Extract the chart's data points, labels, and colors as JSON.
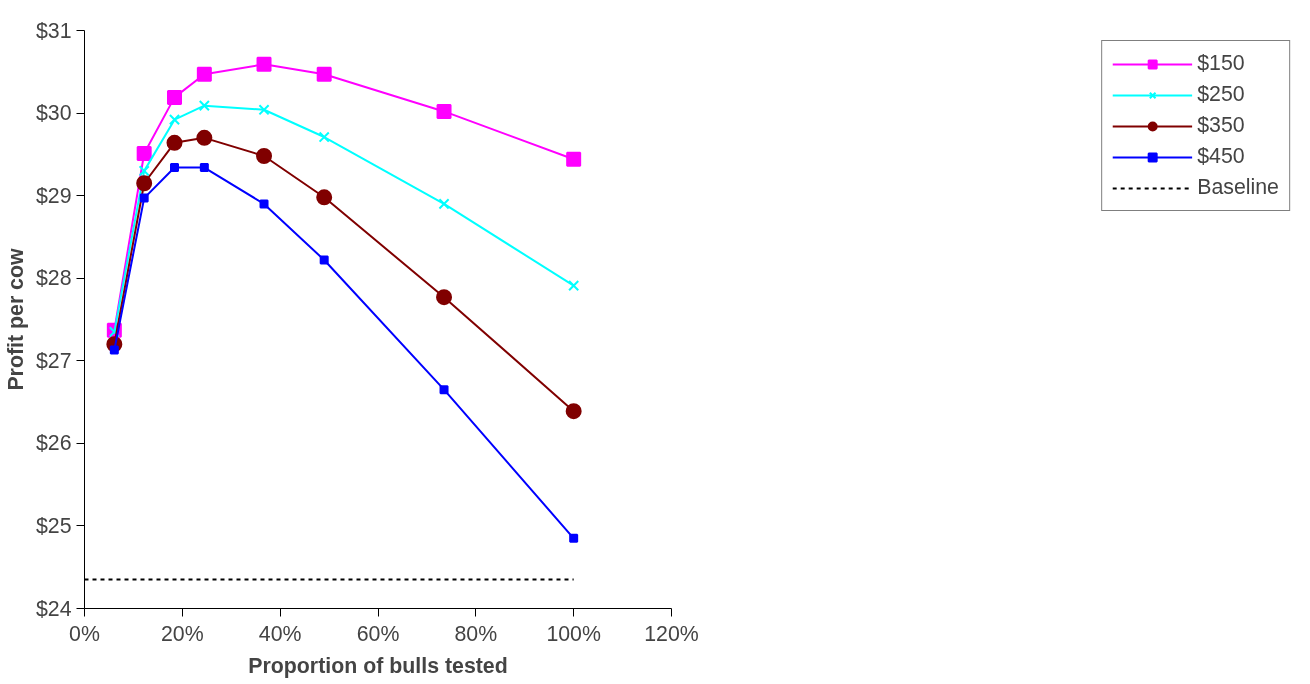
{
  "chart_data": {
    "type": "line",
    "xlabel": "Proportion of bulls tested",
    "ylabel": "Profit per cow",
    "x": [
      6.1,
      12.2,
      18.4,
      24.5,
      36.7,
      49,
      73.5,
      100
    ],
    "series": [
      {
        "name": "$150",
        "color": "#ff00ff",
        "marker": "square",
        "values": [
          27.37,
          29.51,
          30.19,
          30.47,
          30.59,
          30.47,
          30.02,
          29.44
        ]
      },
      {
        "name": "$250",
        "color": "#00ffff",
        "marker": "cross",
        "values": [
          27.35,
          29.3,
          29.92,
          30.09,
          30.04,
          29.71,
          28.9,
          27.91
        ]
      },
      {
        "name": "$350",
        "color": "#800000",
        "marker": "circle",
        "values": [
          27.2,
          29.15,
          29.64,
          29.7,
          29.48,
          28.98,
          27.77,
          26.39
        ]
      },
      {
        "name": "$450",
        "color": "#0000ff",
        "marker": "square",
        "values": [
          27.13,
          28.97,
          29.34,
          29.34,
          28.9,
          28.22,
          26.65,
          24.85
        ]
      },
      {
        "name": "Baseline",
        "color": "#000000",
        "marker": "none",
        "line_style": "dotted",
        "x": [
          0,
          100
        ],
        "values": [
          24.35,
          24.35
        ]
      }
    ],
    "xlim": [
      0,
      120
    ],
    "xticks": [
      {
        "value": 0,
        "label": "0%"
      },
      {
        "value": 20,
        "label": "20%"
      },
      {
        "value": 40,
        "label": "40%"
      },
      {
        "value": 60,
        "label": "60%"
      },
      {
        "value": 80,
        "label": "80%"
      },
      {
        "value": 100,
        "label": "100%"
      },
      {
        "value": 120,
        "label": "120%"
      }
    ],
    "ylim": [
      24,
      31
    ],
    "yticks": [
      {
        "value": 24,
        "label": "$24"
      },
      {
        "value": 25,
        "label": "$25"
      },
      {
        "value": 26,
        "label": "$26"
      },
      {
        "value": 27,
        "label": "$27"
      },
      {
        "value": 28,
        "label": "$28"
      },
      {
        "value": 29,
        "label": "$29"
      },
      {
        "value": 30,
        "label": "$30"
      },
      {
        "value": 31,
        "label": "$31"
      }
    ],
    "grid": false,
    "legend": "right"
  }
}
